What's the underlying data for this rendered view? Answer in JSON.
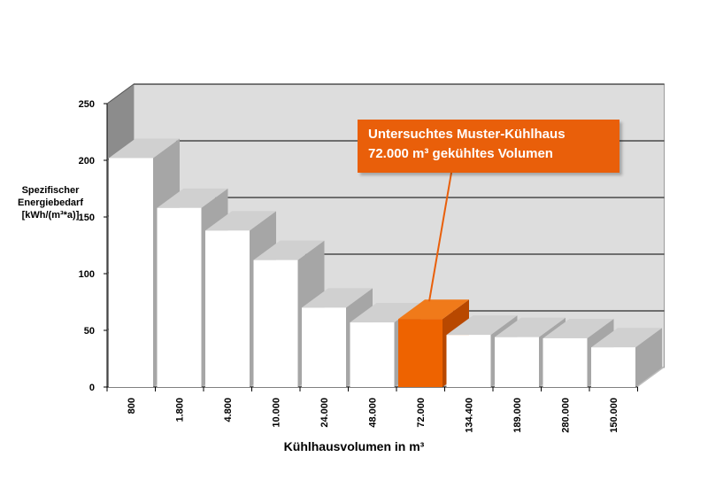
{
  "chart_data": {
    "type": "bar",
    "style": "3d",
    "title": "",
    "ylabel_lines": [
      "Spezifischer",
      "Energiebedarf",
      "[kWh/(m³*a)]"
    ],
    "xlabel": "Kühlhausvolumen in m³",
    "ylim": [
      0,
      250
    ],
    "yticks": [
      0,
      50,
      100,
      150,
      200,
      250
    ],
    "grid": true,
    "categories": [
      "800",
      "1.800",
      "4.800",
      "10.000",
      "24.000",
      "48.000",
      "72.000",
      "134.400",
      "189.000",
      "280.000",
      "150.000"
    ],
    "values": [
      202,
      158,
      138,
      112,
      70,
      57,
      60,
      46,
      44,
      43,
      35
    ],
    "highlight_index": 6,
    "colors": {
      "bar": "#ffffff",
      "bar_side": "#a6a6a6",
      "bar_top": "#d0d0d0",
      "highlight": "#ee6300",
      "highlight_side": "#b84800",
      "highlight_top": "#f07a1a",
      "wall": "#dddddd",
      "floor": "#bcbcbc",
      "gridline": "#000000"
    },
    "annotation": {
      "lines": [
        "Untersuchtes Muster-Kühlhaus",
        "72.000 m³ gekühltes Volumen"
      ],
      "target_index": 6,
      "background": "#e95f0a"
    }
  }
}
